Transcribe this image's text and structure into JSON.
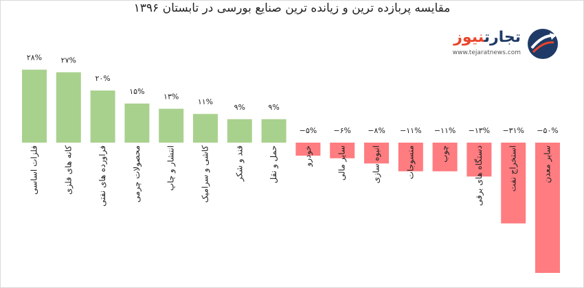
{
  "title": "مقایسه پربازده ترین و زیانده ترین صنایع بورسی در  تابستان ۱۳۹۶",
  "logo": {
    "word_part1": "تجارت",
    "word_part2": "نیوز",
    "url": "www.tejaratnews.com",
    "colors": {
      "primary": "#1f3a66",
      "accent": "#e8452c"
    }
  },
  "colors": {
    "positive": "#a9d18e",
    "negative": "#ff7c80"
  },
  "chart_data": {
    "type": "bar",
    "title": "مقایسه پربازده ترین و زیانده ترین صنایع بورسی در  تابستان ۱۳۹۶",
    "categories": [
      "فلزات اساسی",
      "کانه های فلزی",
      "فراورده های نفتی",
      "محصولات چرمی",
      "انتشار و چاپ",
      "کاشی و سرامیک",
      "قند و شکر",
      "حمل و نقل",
      "خودرو",
      "سایر مالی",
      "انبوه سازی",
      "منسوجات",
      "چوب",
      "دستگاه های برقی",
      "استخراج نفت",
      "سایر معدن"
    ],
    "values": [
      28,
      27,
      20,
      15,
      13,
      11,
      9,
      9,
      -5,
      -6,
      -8,
      -11,
      -11,
      -13,
      -31,
      -50
    ],
    "value_labels": [
      "۲۸%",
      "۲۷%",
      "۲۰%",
      "۱۵%",
      "۱۳%",
      "۱۱%",
      "۹%",
      "۹%",
      "−۵%",
      "−۶%",
      "−۸%",
      "−۱۱%",
      "−۱۱%",
      "−۱۳%",
      "−۳۱%",
      "−۵۰%"
    ],
    "ylabel": "",
    "xlabel": "",
    "ylim": [
      -50,
      28
    ],
    "grid": false,
    "legend": "none"
  }
}
